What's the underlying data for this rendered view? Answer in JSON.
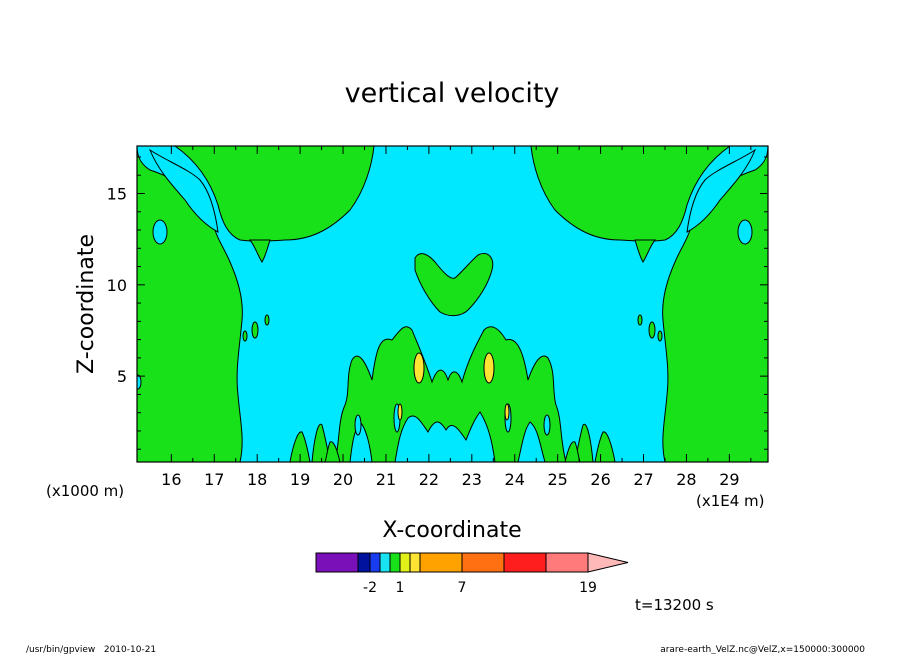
{
  "chart_data": {
    "type": "heatmap",
    "subtype": "filled-contour",
    "title": "vertical velocity",
    "xlabel": "X-coordinate",
    "ylabel": "Z-coordinate",
    "x_unit_left": "(x1000 m)",
    "x_unit_right": "(x1E4 m)",
    "xlim": [
      15.2,
      29.9
    ],
    "ylim": [
      0.3,
      17.6
    ],
    "x_ticks": [
      16,
      17,
      18,
      19,
      20,
      21,
      22,
      23,
      24,
      25,
      26,
      27,
      28,
      29
    ],
    "y_ticks": [
      5,
      10,
      15
    ],
    "time_label": "t=13200 s",
    "footer_left": "/usr/bin/gpview   2010-10-21",
    "footer_right": "arare-earth_VelZ.nc@VelZ,x=150000:300000",
    "colorbar": {
      "colors": [
        "#7a10b8",
        "#00129e",
        "#1a3cf0",
        "#19e3f2",
        "#19e119",
        "#e1f019",
        "#ffe533",
        "#ffa200",
        "#ff7012",
        "#ff1e1e",
        "#ff7a7a",
        "#ffb9b9"
      ],
      "tick_labels": [
        "-2",
        "1",
        "7",
        "19"
      ]
    },
    "regions": {
      "background_color": "#00e8ff",
      "positive_color": "#19e119",
      "strong_color": "#ffe533",
      "negative_color": "#00e8ff"
    }
  }
}
